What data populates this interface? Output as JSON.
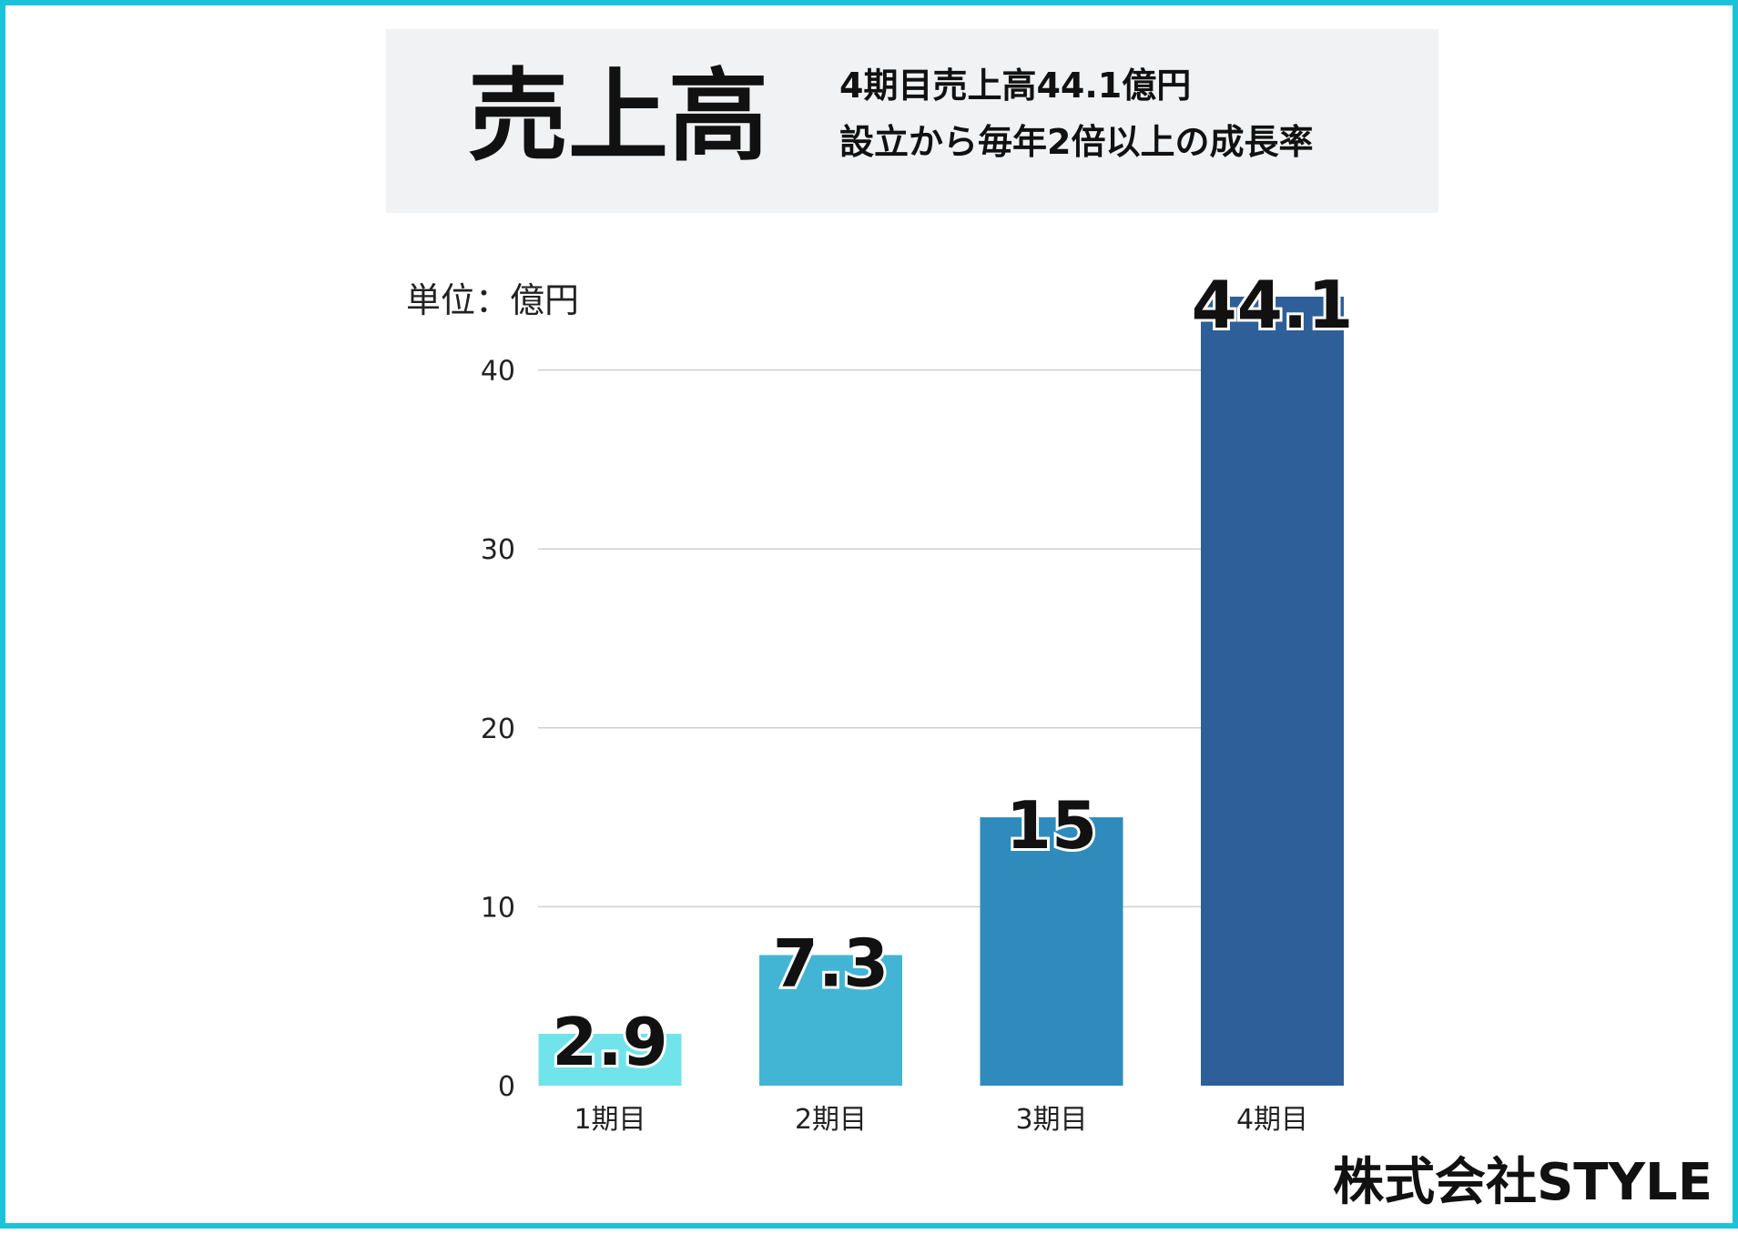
{
  "header": {
    "title": "売上高",
    "subtitle_line1": "4期目売上高44.1億円",
    "subtitle_line2": "設立から毎年2倍以上の成長率"
  },
  "footer": {
    "company": "株式会社STYLE"
  },
  "colors": {
    "border": "#1cc3d8",
    "title_bg": "#f1f2f4",
    "grid": "#cfcfcf",
    "bars": [
      "#71e3ea",
      "#43b5d4",
      "#2f8bbb",
      "#2e5f98"
    ]
  },
  "chart_data": {
    "type": "bar",
    "unit_label": "単位：億円",
    "categories": [
      "1期目",
      "2期目",
      "3期目",
      "4期目"
    ],
    "values": [
      2.9,
      7.3,
      15,
      44.1
    ],
    "value_labels": [
      "2.9",
      "7.3",
      "15",
      "44.1"
    ],
    "ylim": [
      0,
      44.1
    ],
    "yticks": [
      0,
      10,
      20,
      30,
      40
    ],
    "grid": true,
    "legend": "none"
  }
}
